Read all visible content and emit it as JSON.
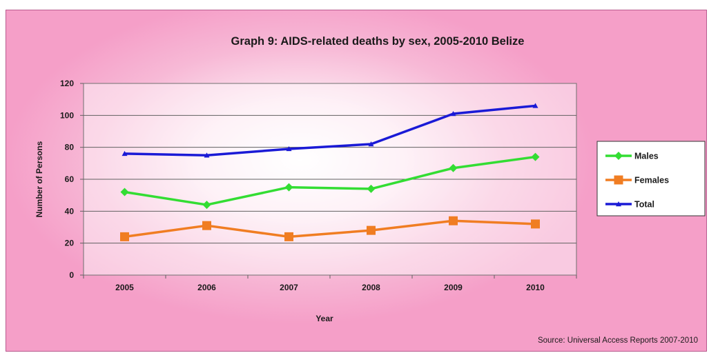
{
  "chart_data": {
    "type": "line",
    "title": "Graph 9: AIDS-related deaths by sex, 2005-2010 Belize",
    "xlabel": "Year",
    "ylabel": "Number of Persons",
    "categories": [
      "2005",
      "2006",
      "2007",
      "2008",
      "2009",
      "2010"
    ],
    "ylim": [
      0,
      120
    ],
    "yticks": [
      0,
      20,
      40,
      60,
      80,
      100,
      120
    ],
    "grid": true,
    "legend_position": "right",
    "series": [
      {
        "name": "Males",
        "values": [
          52,
          44,
          55,
          54,
          67,
          74
        ],
        "color": "#33dd33",
        "marker": "diamond"
      },
      {
        "name": "Females",
        "values": [
          24,
          31,
          24,
          28,
          34,
          32
        ],
        "color": "#f07d22",
        "marker": "square"
      },
      {
        "name": "Total",
        "values": [
          76,
          75,
          79,
          82,
          101,
          106
        ],
        "color": "#1a1ad6",
        "marker": "triangle"
      }
    ],
    "source": "Source: Universal Access Reports 2007-2010"
  }
}
